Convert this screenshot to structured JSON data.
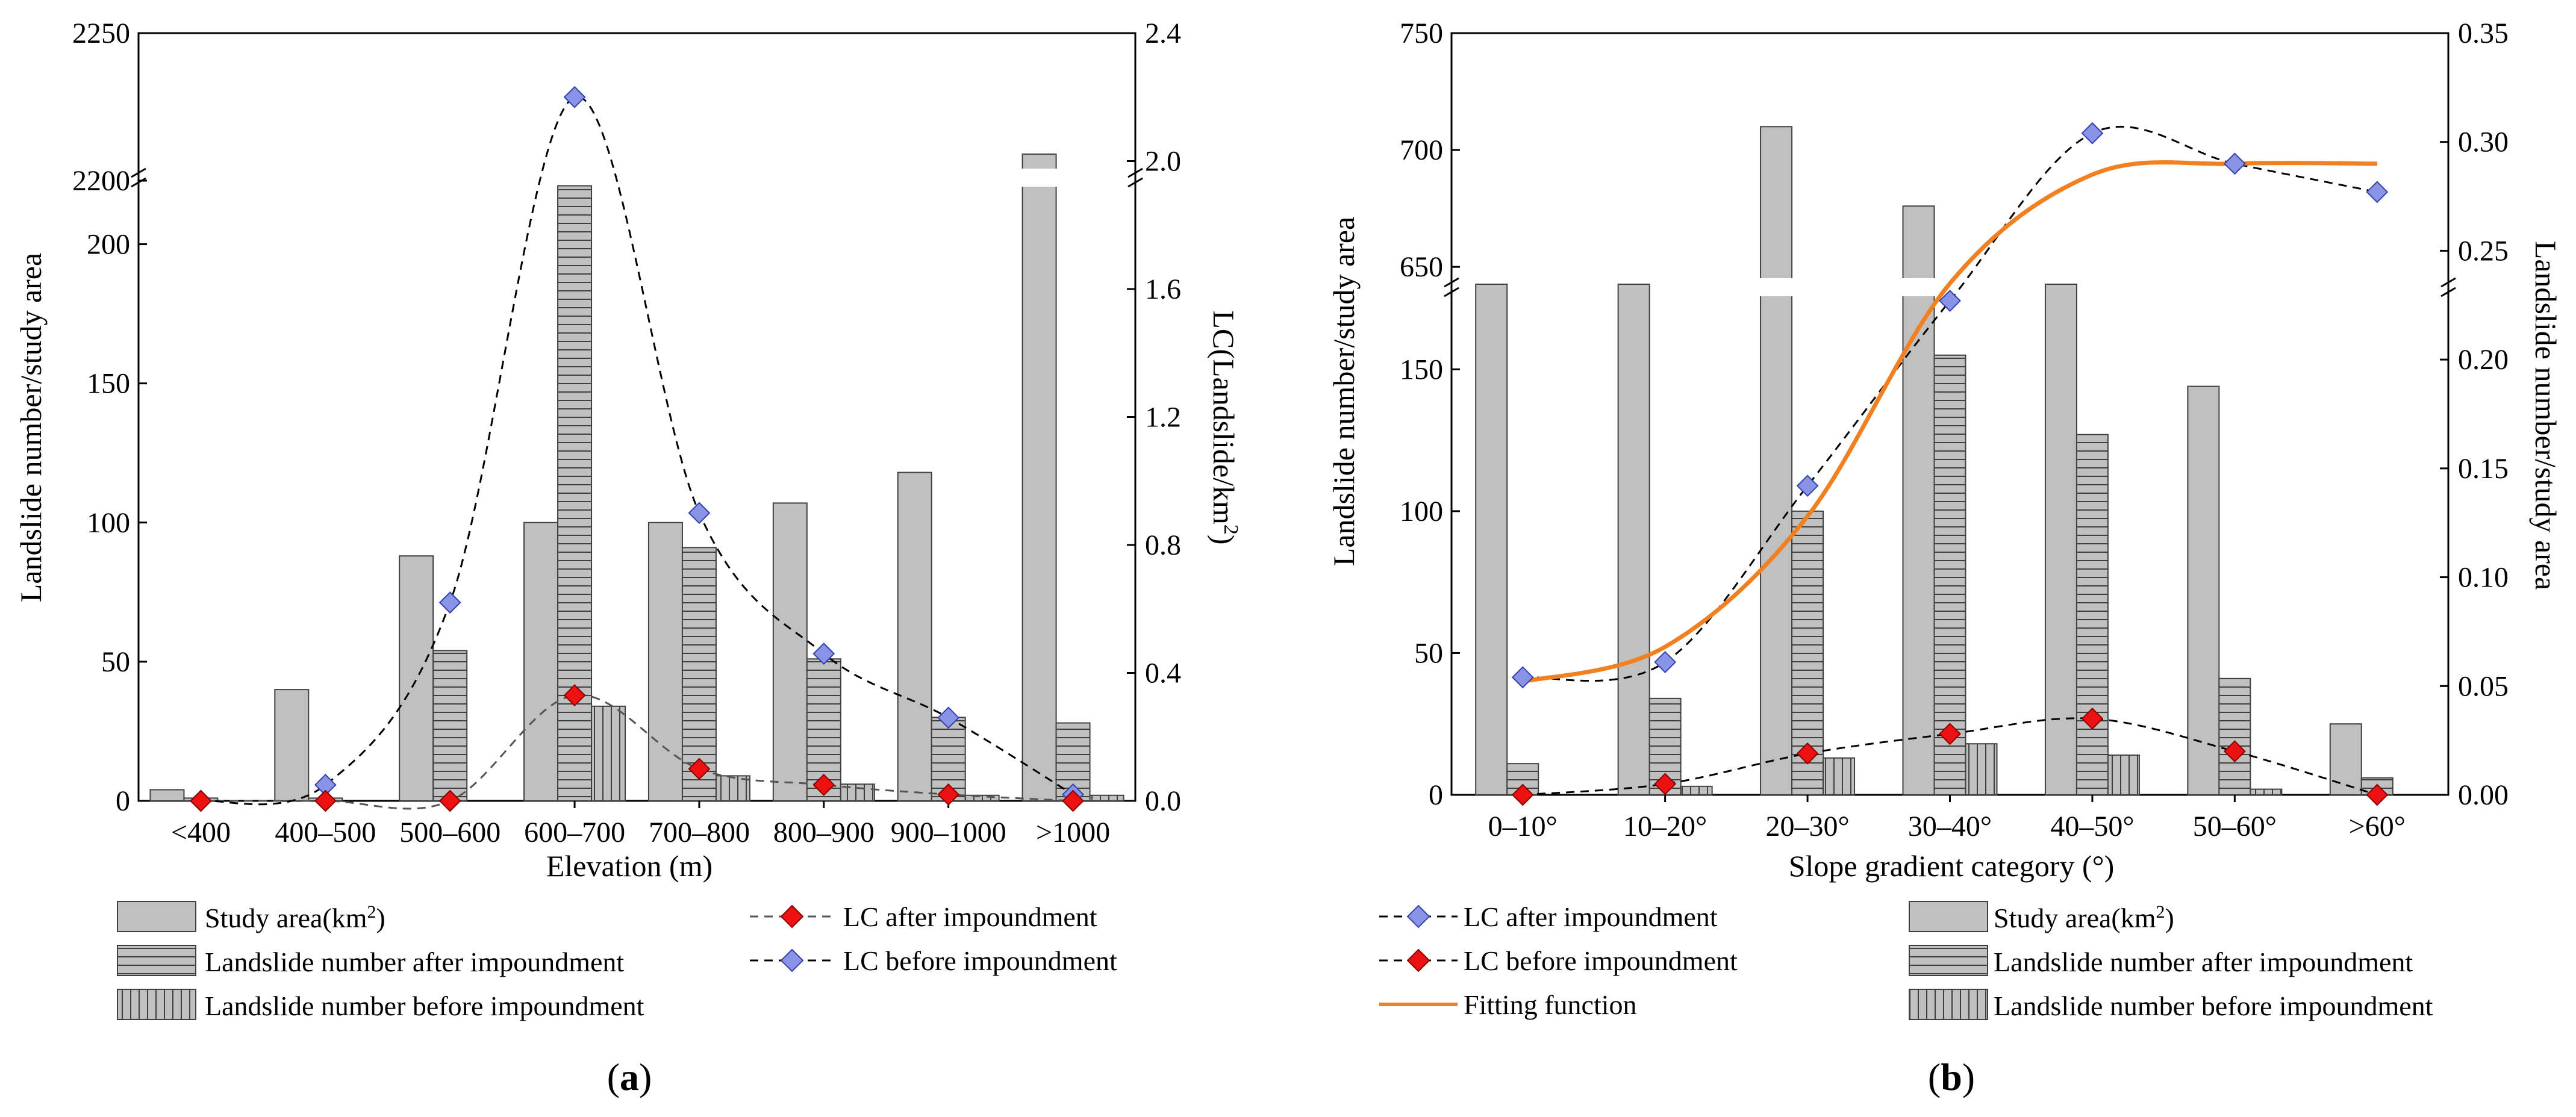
{
  "colors": {
    "bar_fill": "#c0c0c0",
    "bar_stroke": "#404040",
    "lc_before_marker": "#8a94e6",
    "lc_after_marker": "#ee1111",
    "fitting_line": "#f28020",
    "axis": "#000000"
  },
  "panels": [
    {
      "id": "a",
      "label_open": "(",
      "label_letter": "a",
      "label_close": ")",
      "xlabel": "Elevation (m)",
      "ylabel": "Landslide number/study area",
      "y2label_main": "LC(Landslide/km",
      "y2label_sup": "2",
      "y2label_tail": ")"
    },
    {
      "id": "b",
      "label_open": "(",
      "label_letter": "b",
      "label_close": ")",
      "xlabel": "Slope gradient category (°)",
      "ylabel": "Landslide number/study area",
      "y2label_main": "Landslide number/study area",
      "y2label_sup": "",
      "y2label_tail": ""
    }
  ],
  "legend": {
    "a": {
      "study_area": "Study area(km",
      "study_area_sup": "2",
      "study_area_tail": ")",
      "ln_after": "Landslide number after impoundment",
      "ln_before": "Landslide number before impoundment",
      "lc_after": "LC after impoundment",
      "lc_before": "LC before impoundment"
    },
    "b": {
      "lc_after": "LC after impoundment",
      "lc_before": "LC before impoundment",
      "fitting": "Fitting function",
      "study_area": "Study area(km",
      "study_area_sup": "2",
      "study_area_tail": ")",
      "ln_after": "Landslide number after impoundment",
      "ln_before": "Landslide number before impoundment"
    }
  },
  "chart_data": [
    {
      "type": "bar",
      "panel": "a",
      "categories": [
        "<400",
        "400–500",
        "500–600",
        "600–700",
        "700–800",
        "800–900",
        "900–1000",
        ">1000"
      ],
      "y_axis_break": {
        "lower_range": [
          0,
          225
        ],
        "upper_range": [
          2200,
          2250
        ]
      },
      "yticks_left": [
        "0",
        "50",
        "100",
        "150",
        "200",
        "2200",
        "2250"
      ],
      "yticks_right": [
        "0.0",
        "0.4",
        "0.8",
        "1.2",
        "1.6",
        "2.0",
        "2.4"
      ],
      "y2lim": [
        0,
        2.4
      ],
      "series": [
        {
          "name": "Study area(km2)",
          "axis": "left",
          "values": [
            4,
            40,
            88,
            100,
            100,
            107,
            118,
            2209
          ]
        },
        {
          "name": "Landslide number after impoundment",
          "axis": "left",
          "values": [
            1,
            1,
            54,
            221,
            91,
            51,
            30,
            28
          ]
        },
        {
          "name": "Landslide number before impoundment",
          "axis": "left",
          "values": [
            0,
            0,
            0,
            34,
            9,
            6,
            2,
            2
          ]
        },
        {
          "name": "LC after impoundment",
          "axis": "right",
          "values": [
            0.0,
            0.0,
            0.0,
            0.33,
            0.1,
            0.05,
            0.02,
            0.0
          ]
        },
        {
          "name": "LC before impoundment",
          "axis": "right",
          "values": [
            0.0,
            0.05,
            0.62,
            2.2,
            0.9,
            0.46,
            0.26,
            0.02
          ]
        }
      ]
    },
    {
      "type": "bar",
      "panel": "b",
      "categories": [
        "0–10°",
        "10–20°",
        "20–30°",
        "30–40°",
        "40–50°",
        "50–60°",
        ">60°"
      ],
      "y_axis_break": {
        "lower_range": [
          0,
          180
        ],
        "upper_range": [
          640,
          750
        ]
      },
      "yticks_left": [
        "0",
        "50",
        "100",
        "150",
        "650",
        "700",
        "750"
      ],
      "yticks_right": [
        "0.00",
        "0.05",
        "0.10",
        "0.15",
        "0.20",
        "0.25",
        "0.30",
        "0.35"
      ],
      "y2lim": [
        0,
        0.35
      ],
      "series": [
        {
          "name": "Study area(km2)",
          "axis": "left",
          "values": [
            180,
            180,
            710,
            676,
            180,
            144,
            25
          ]
        },
        {
          "name": "Landslide number after impoundment",
          "axis": "left",
          "values": [
            11,
            34,
            100,
            155,
            127,
            41,
            6
          ]
        },
        {
          "name": "Landslide number before impoundment",
          "axis": "left",
          "values": [
            0,
            3,
            13,
            18,
            14,
            2,
            0
          ]
        },
        {
          "name": "LC after impoundment",
          "axis": "right",
          "values": [
            0.054,
            0.061,
            0.142,
            0.227,
            0.304,
            0.29,
            0.277
          ]
        },
        {
          "name": "LC before impoundment",
          "axis": "right",
          "values": [
            0.0,
            0.005,
            0.019,
            0.028,
            0.035,
            0.02,
            0.0
          ]
        },
        {
          "name": "Fitting function",
          "axis": "right",
          "values": [
            0.052,
            0.068,
            0.128,
            0.235,
            0.285,
            0.29,
            0.29
          ]
        }
      ]
    }
  ]
}
